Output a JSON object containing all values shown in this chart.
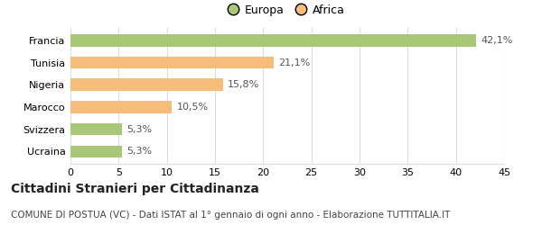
{
  "categories": [
    "Francia",
    "Tunisia",
    "Nigeria",
    "Marocco",
    "Svizzera",
    "Ucraina"
  ],
  "values": [
    42.1,
    21.1,
    15.8,
    10.5,
    5.3,
    5.3
  ],
  "labels": [
    "42,1%",
    "21,1%",
    "15,8%",
    "10,5%",
    "5,3%",
    "5,3%"
  ],
  "colors": [
    "#a8c878",
    "#f5bc7a",
    "#f5bc7a",
    "#f5bc7a",
    "#a8c878",
    "#a8c878"
  ],
  "legend": [
    {
      "label": "Europa",
      "color": "#a8c878"
    },
    {
      "label": "Africa",
      "color": "#f5bc7a"
    }
  ],
  "xlim": [
    0,
    45
  ],
  "xticks": [
    0,
    5,
    10,
    15,
    20,
    25,
    30,
    35,
    40,
    45
  ],
  "title": "Cittadini Stranieri per Cittadinanza",
  "subtitle": "COMUNE DI POSTUA (VC) - Dati ISTAT al 1° gennaio di ogni anno - Elaborazione TUTTITALIA.IT",
  "title_fontsize": 10,
  "subtitle_fontsize": 7.5,
  "label_fontsize": 8,
  "tick_fontsize": 8,
  "legend_fontsize": 9,
  "bg_color": "#ffffff",
  "grid_color": "#dddddd",
  "bar_height": 0.55
}
